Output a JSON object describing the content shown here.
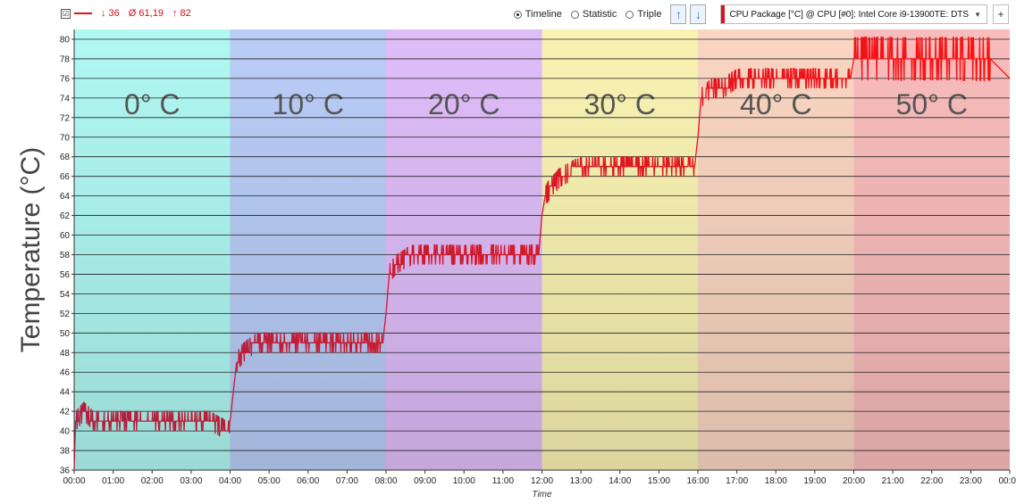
{
  "toolbar": {
    "checkbox_mark": "☑",
    "series_color": "#e8101a",
    "stat_min": "↓ 36",
    "stat_avg": "Ø 61,19",
    "stat_max": "↑ 82",
    "view_options": [
      {
        "label": "Timeline",
        "selected": true
      },
      {
        "label": "Statistic",
        "selected": false
      },
      {
        "label": "Triple",
        "selected": false
      }
    ],
    "up_icon": "arrow-up-icon",
    "down_icon": "arrow-down-icon",
    "sensor_label": "CPU Package [°C] @ CPU [#0]: Intel Core i9-13900TE: DTS",
    "add_label": "+"
  },
  "chart_data": {
    "type": "line",
    "ylabel": "Temperature (°C)",
    "xlabel": "Time",
    "ylim": [
      36,
      81
    ],
    "yticks": [
      36,
      38,
      40,
      42,
      44,
      46,
      48,
      50,
      52,
      54,
      56,
      58,
      60,
      62,
      64,
      66,
      68,
      70,
      72,
      74,
      76,
      78,
      80
    ],
    "xlim": [
      "00:00",
      "24:00"
    ],
    "xticks": [
      "00:00",
      "01:00",
      "02:00",
      "03:00",
      "04:00",
      "05:00",
      "06:00",
      "07:00",
      "08:00",
      "09:00",
      "10:00",
      "11:00",
      "12:00",
      "13:00",
      "14:00",
      "15:00",
      "16:00",
      "17:00",
      "18:00",
      "19:00",
      "20:00",
      "21:00",
      "22:00",
      "23:00",
      "00:00"
    ],
    "grid": "horizontal",
    "zones": [
      {
        "label": "0° C",
        "start": "00:00",
        "end": "04:00",
        "color": "#b0f8f2"
      },
      {
        "label": "10° C",
        "start": "04:00",
        "end": "08:00",
        "color": "#b9cdf7"
      },
      {
        "label": "20° C",
        "start": "08:00",
        "end": "12:00",
        "color": "#dfbdf9"
      },
      {
        "label": "30° C",
        "start": "12:00",
        "end": "16:00",
        "color": "#f9f3b3"
      },
      {
        "label": "40° C",
        "start": "16:00",
        "end": "20:00",
        "color": "#fad6c2"
      },
      {
        "label": "50° C",
        "start": "20:00",
        "end": "24:00",
        "color": "#f9bcbc"
      }
    ],
    "series": [
      {
        "color_start": "#b02040",
        "color_end": "#ff1010",
        "points": [
          [
            "00:00",
            36
          ],
          [
            "00:02",
            41
          ],
          [
            "00:15",
            42
          ],
          [
            "00:30",
            41
          ],
          [
            "01:00",
            41
          ],
          [
            "01:30",
            41
          ],
          [
            "02:00",
            41
          ],
          [
            "02:30",
            41
          ],
          [
            "03:00",
            41
          ],
          [
            "03:30",
            41
          ],
          [
            "03:55",
            40
          ],
          [
            "04:00",
            41
          ],
          [
            "04:05",
            44
          ],
          [
            "04:10",
            47
          ],
          [
            "04:20",
            48
          ],
          [
            "04:40",
            49
          ],
          [
            "05:00",
            49
          ],
          [
            "05:30",
            49
          ],
          [
            "06:00",
            49
          ],
          [
            "06:30",
            49
          ],
          [
            "07:00",
            49
          ],
          [
            "07:30",
            49
          ],
          [
            "07:55",
            49
          ],
          [
            "08:00",
            52
          ],
          [
            "08:05",
            56
          ],
          [
            "08:15",
            57
          ],
          [
            "08:40",
            58
          ],
          [
            "09:00",
            58
          ],
          [
            "09:30",
            58
          ],
          [
            "10:00",
            58
          ],
          [
            "10:30",
            58
          ],
          [
            "11:00",
            58
          ],
          [
            "11:30",
            58
          ],
          [
            "11:55",
            58
          ],
          [
            "12:00",
            62
          ],
          [
            "12:05",
            64
          ],
          [
            "12:15",
            65
          ],
          [
            "12:30",
            66
          ],
          [
            "13:00",
            67
          ],
          [
            "13:30",
            67
          ],
          [
            "14:00",
            67
          ],
          [
            "14:30",
            67
          ],
          [
            "15:00",
            67
          ],
          [
            "15:30",
            67
          ],
          [
            "15:55",
            67
          ],
          [
            "16:00",
            70
          ],
          [
            "16:05",
            74
          ],
          [
            "16:20",
            75
          ],
          [
            "16:40",
            75
          ],
          [
            "17:00",
            76
          ],
          [
            "17:30",
            76
          ],
          [
            "18:00",
            76
          ],
          [
            "18:30",
            76
          ],
          [
            "19:00",
            76
          ],
          [
            "19:30",
            76
          ],
          [
            "19:55",
            76
          ],
          [
            "20:00",
            78
          ],
          [
            "20:30",
            78
          ],
          [
            "21:00",
            78
          ],
          [
            "21:30",
            78
          ],
          [
            "22:00",
            78
          ],
          [
            "22:30",
            78
          ],
          [
            "23:00",
            78
          ],
          [
            "23:30",
            78
          ],
          [
            "24:00",
            76
          ]
        ]
      }
    ]
  }
}
